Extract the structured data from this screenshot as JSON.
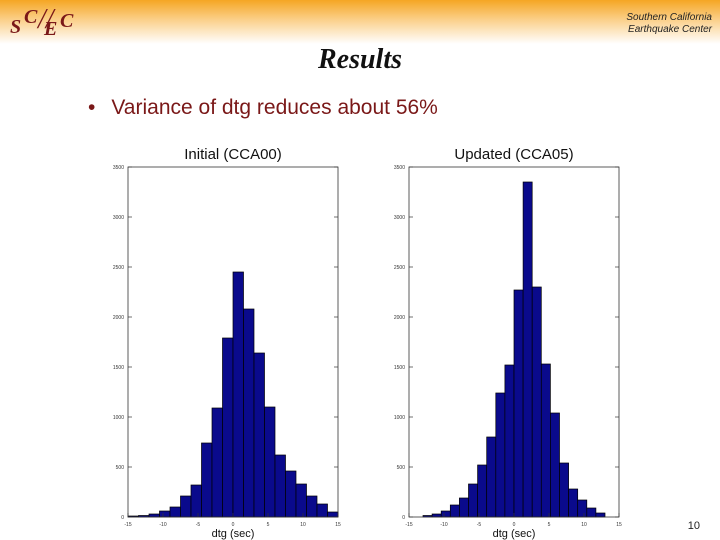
{
  "header": {
    "logo_text": "SC/EC",
    "org_line1": "Southern California",
    "org_line2": "Earthquake Center",
    "accent_color": "#f5a623"
  },
  "slide": {
    "title": "Results",
    "bullet_text": "Variance of dtg reduces about 56%",
    "bullet_color": "#7a1818",
    "page_number": "10"
  },
  "chart_data": [
    {
      "type": "bar",
      "title": "Initial (CCA00)",
      "xlabel": "dtg (sec)",
      "ylabel": "",
      "bar_color": "#0a0a8c",
      "xlim": [
        -15,
        15
      ],
      "ylim": [
        0,
        3500
      ],
      "xticks": [
        "-15",
        "-10",
        "-5",
        "0",
        "5",
        "10",
        "15"
      ],
      "yticks": [
        "0",
        "500",
        "1000",
        "1500",
        "2000",
        "2500",
        "3000",
        "3500"
      ],
      "bin_width": 1.5,
      "bins_start": [
        -15,
        -13.5,
        -12,
        -10.5,
        -9,
        -7.5,
        -6,
        -4.5,
        -3,
        -1.5,
        0,
        1.5,
        3,
        4.5,
        6,
        7.5,
        9,
        10.5,
        12,
        13.5
      ],
      "values": [
        10,
        15,
        30,
        60,
        100,
        210,
        320,
        740,
        1090,
        1790,
        2450,
        2080,
        1640,
        1100,
        620,
        460,
        330,
        210,
        130,
        50
      ]
    },
    {
      "type": "bar",
      "title": "Updated (CCA05)",
      "xlabel": "dtg (sec)",
      "ylabel": "",
      "bar_color": "#0a0a8c",
      "xlim": [
        -15,
        15
      ],
      "ylim": [
        0,
        3500
      ],
      "xticks": [
        "-15",
        "-10",
        "-5",
        "0",
        "5",
        "10",
        "15"
      ],
      "yticks": [
        "0",
        "500",
        "1000",
        "1500",
        "2000",
        "2500",
        "3000",
        "3500"
      ],
      "bin_width": 1.3,
      "bins_start": [
        -13,
        -11.7,
        -10.4,
        -9.1,
        -7.8,
        -6.5,
        -5.2,
        -3.9,
        -2.6,
        -1.3,
        0,
        1.3,
        2.6,
        3.9,
        5.2,
        6.5,
        7.8,
        9.1,
        10.4,
        11.7
      ],
      "values": [
        15,
        30,
        60,
        120,
        190,
        330,
        520,
        800,
        1240,
        1520,
        2270,
        3350,
        2300,
        1530,
        1040,
        540,
        280,
        170,
        90,
        40
      ]
    }
  ]
}
